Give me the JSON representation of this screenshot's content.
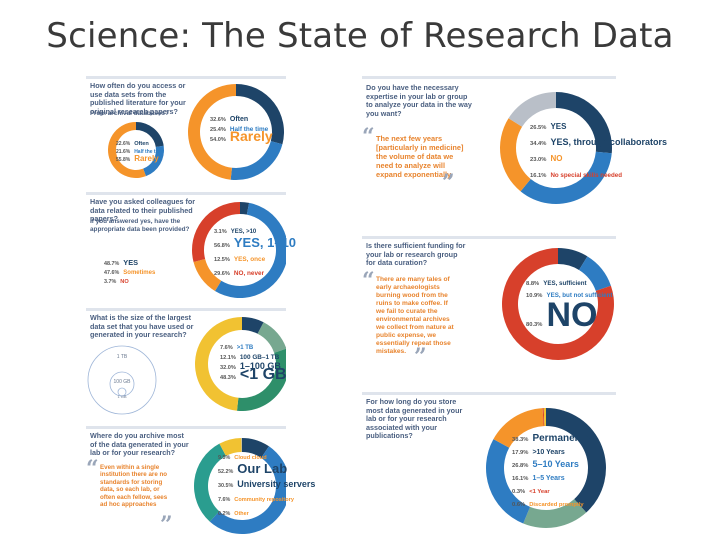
{
  "page": {
    "title": "Science: The State of Research Data"
  },
  "colors": {
    "navy": "#1e4468",
    "blue": "#2e7cc2",
    "orange": "#f5942a",
    "green": "#2e8f6a",
    "sage": "#77a890",
    "teal": "#2a9d8f",
    "red": "#d7402b",
    "yellow": "#f1c232",
    "gray": "#b9bfc8"
  },
  "panels": {
    "access": {
      "question": "How often do you access or use data sets from the published literature for your original research papers?",
      "sub_question": "From archival databases?",
      "quote": "",
      "legend": [
        {
          "pct": "32.6%",
          "label": "Often"
        },
        {
          "pct": "25.4%",
          "label": "Half the time"
        },
        {
          "pct": "54.0%",
          "label": "Rarely"
        }
      ],
      "inner_legend": [
        {
          "pct": "22.6%",
          "label": "Often"
        },
        {
          "pct": "21.6%",
          "label": "Half the time"
        },
        {
          "pct": "55.8%",
          "label": "Rarely"
        }
      ]
    },
    "colleagues": {
      "question": "Have you asked colleagues for data related to their published papers?",
      "sub_question": "If you answered yes, have the appropriate data been provided?",
      "legend": [
        {
          "pct": "3.1%",
          "label": "YES, >10"
        },
        {
          "pct": "56.8%",
          "label": "YES, 1–10"
        },
        {
          "pct": "12.5%",
          "label": "YES, once"
        },
        {
          "pct": "29.6%",
          "label": "NO, never"
        }
      ],
      "inner_legend": [
        {
          "pct": "48.7%",
          "label": "YES"
        },
        {
          "pct": "47.6%",
          "label": "Sometimes"
        },
        {
          "pct": "3.7%",
          "label": "NO"
        }
      ]
    },
    "largest": {
      "question": "What is the size of the largest data set that you have used or generated in your research?",
      "legend": [
        {
          "pct": "7.6%",
          "label": ">1 TB"
        },
        {
          "pct": "12.1%",
          "label": "100 GB–1 TB"
        },
        {
          "pct": "32.0%",
          "label": "1–100 GB"
        },
        {
          "pct": "48.3%",
          "label": "<1 GB"
        }
      ],
      "circle_labels": [
        "1 TB",
        "100 GB",
        "1 GB"
      ]
    },
    "archive": {
      "question": "Where do you archive most of the data generated in your lab or for your research?",
      "quote": "Even within a single institution there are no standards for storing data, so each lab, or often each fellow, sees ad hoc approaches",
      "legend": [
        {
          "pct": "9.5%",
          "label": "Cloud cloud"
        },
        {
          "pct": "52.2%",
          "label": "Our Lab"
        },
        {
          "pct": "30.5%",
          "label": "University servers"
        },
        {
          "pct": "7.6%",
          "label": "Community repository"
        },
        {
          "pct": "0.2%",
          "label": "Other"
        }
      ]
    },
    "expertise": {
      "question": "Do you have the necessary expertise in your lab or group to analyze your data in the way you want?",
      "quote": "The next few years [particularly in medicine] the volume of data we need to analyze will expand exponentially.",
      "legend": [
        {
          "pct": "26.5%",
          "label": "YES"
        },
        {
          "pct": "34.4%",
          "label": "YES, through collaborators"
        },
        {
          "pct": "23.0%",
          "label": "NO"
        },
        {
          "pct": "16.1%",
          "label": "No special skills needed"
        }
      ]
    },
    "funding": {
      "question": "Is there sufficient funding for your lab or research group for data curation?",
      "quote": "There are many tales of early archaeologists burning wood from the ruins to make coffee. If we fail to curate the environmental archives we collect from nature at public expense, we essentially repeat those mistakes.",
      "legend": [
        {
          "pct": "8.8%",
          "label": "YES, sufficient"
        },
        {
          "pct": "10.9%",
          "label": "YES, but not sufficient"
        },
        {
          "pct": "80.3%",
          "label": "NO"
        }
      ]
    },
    "duration": {
      "question": "For how long do you store most data generated in your lab or for your research associated with your publications?",
      "legend": [
        {
          "pct": "38.3%",
          "label": "Permanently"
        },
        {
          "pct": "17.9%",
          "label": ">10 Years"
        },
        {
          "pct": "26.8%",
          "label": "5–10 Years"
        },
        {
          "pct": "16.1%",
          "label": "1–5 Years"
        },
        {
          "pct": "0.3%",
          "label": "<1 Year"
        },
        {
          "pct": "0.6%",
          "label": "Discarded promptly"
        }
      ]
    }
  },
  "chart_data": [
    {
      "type": "pie",
      "title": "How often do you access or use data sets from the published literature for your original research papers?",
      "categories": [
        "Often",
        "Half the time",
        "Rarely"
      ],
      "values": [
        32.6,
        25.4,
        54.0
      ]
    },
    {
      "type": "pie",
      "title": "From archival databases?",
      "categories": [
        "Often",
        "Half the time",
        "Rarely"
      ],
      "values": [
        22.6,
        21.6,
        55.8
      ]
    },
    {
      "type": "pie",
      "title": "Have you asked colleagues for data related to their published papers?",
      "categories": [
        "YES, >10",
        "YES, 1–10",
        "YES, once",
        "NO, never"
      ],
      "values": [
        3.1,
        56.8,
        12.5,
        29.6
      ]
    },
    {
      "type": "pie",
      "title": "If you answered yes, have the appropriate data been provided?",
      "categories": [
        "YES",
        "Sometimes",
        "NO"
      ],
      "values": [
        48.7,
        47.6,
        3.7
      ]
    },
    {
      "type": "pie",
      "title": "What is the size of the largest data set that you have used or generated in your research?",
      "categories": [
        ">1 TB",
        "100 GB–1 TB",
        "1–100 GB",
        "<1 GB"
      ],
      "values": [
        7.6,
        12.1,
        32.0,
        48.3
      ]
    },
    {
      "type": "pie",
      "title": "Where do you archive most of the data generated in your lab or for your research?",
      "categories": [
        "Cloud cloud",
        "Our Lab",
        "University servers",
        "Community repository",
        "Other"
      ],
      "values": [
        9.5,
        52.2,
        30.5,
        7.6,
        0.2
      ]
    },
    {
      "type": "pie",
      "title": "Do you have the necessary expertise in your lab or group to analyze your data in the way you want?",
      "categories": [
        "YES",
        "YES, through collaborators",
        "NO",
        "No special skills needed"
      ],
      "values": [
        26.5,
        34.4,
        23.0,
        16.1
      ]
    },
    {
      "type": "pie",
      "title": "Is there sufficient funding for your lab or research group for data curation?",
      "categories": [
        "YES, sufficient",
        "YES, but not sufficient",
        "NO"
      ],
      "values": [
        8.8,
        10.9,
        80.3
      ]
    },
    {
      "type": "pie",
      "title": "For how long do you store most data generated in your lab or for your research associated with your publications?",
      "categories": [
        "Permanently",
        ">10 Years",
        "5–10 Years",
        "1–5 Years",
        "<1 Year",
        "Discarded promptly"
      ],
      "values": [
        38.3,
        17.9,
        26.8,
        16.1,
        0.3,
        0.6
      ]
    }
  ]
}
